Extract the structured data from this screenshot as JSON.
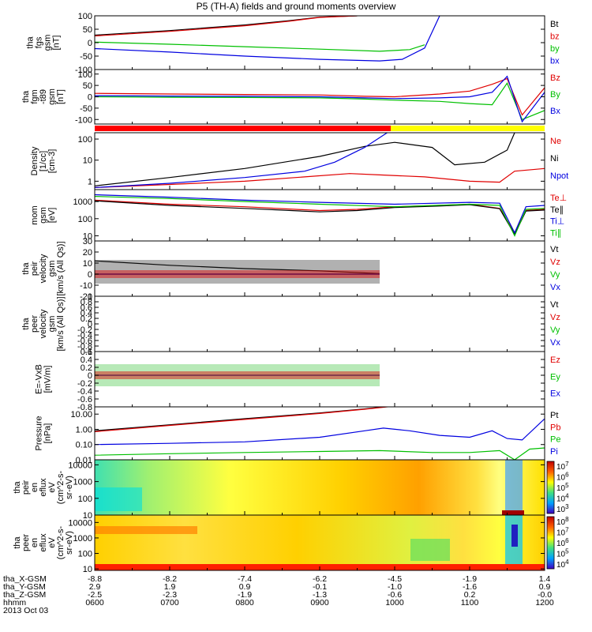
{
  "title": "P5 (TH-A) fields and ground moments overview",
  "chart_data": [
    {
      "type": "line",
      "ylabel_lines": [
        "tha",
        "fgs",
        "gsm",
        "[nT]"
      ],
      "ylim": [
        -100,
        100
      ],
      "yticks": [
        100,
        50,
        0,
        -50,
        -100
      ],
      "series": [
        {
          "name": "Bt",
          "color": "#000000",
          "x": [
            6.0,
            7.0,
            8.0,
            8.6,
            9.0,
            9.5
          ],
          "y": [
            28,
            45,
            66,
            82,
            95,
            100
          ]
        },
        {
          "name": "bz",
          "color": "#e00000",
          "x": [
            6.0,
            7.0,
            8.0,
            8.6,
            9.0,
            9.5
          ],
          "y": [
            25,
            42,
            63,
            80,
            94,
            100
          ]
        },
        {
          "name": "by",
          "color": "#00c000",
          "x": [
            6.0,
            7.0,
            8.0,
            9.0,
            9.8,
            10.2,
            10.4
          ],
          "y": [
            2,
            -6,
            -15,
            -24,
            -32,
            -26,
            -8
          ]
        },
        {
          "name": "bx",
          "color": "#0000e0",
          "x": [
            6.0,
            7.0,
            8.0,
            9.0,
            9.8,
            10.1,
            10.4,
            10.6
          ],
          "y": [
            -22,
            -35,
            -50,
            -62,
            -68,
            -62,
            -20,
            100
          ]
        }
      ]
    },
    {
      "type": "line",
      "ylabel_lines": [
        "tha",
        "fgm",
        "-t89",
        "gsm",
        "[nT]"
      ],
      "ylim": [
        -120,
        120
      ],
      "yticks": [
        100,
        50,
        0,
        -50,
        -100
      ],
      "series": [
        {
          "name": "Bz",
          "color": "#e00000",
          "x": [
            6.0,
            7.0,
            8.0,
            9.0,
            9.6,
            10.0,
            10.6,
            11.0,
            11.3,
            11.5,
            11.7,
            12.0
          ],
          "y": [
            15,
            12,
            10,
            8,
            2,
            0,
            12,
            25,
            55,
            80,
            -80,
            40
          ]
        },
        {
          "name": "By",
          "color": "#00c000",
          "x": [
            6.0,
            7.0,
            8.0,
            9.0,
            9.6,
            10.0,
            10.6,
            11.0,
            11.3,
            11.5,
            11.7,
            12.0
          ],
          "y": [
            0,
            -2,
            -3,
            -5,
            -10,
            -15,
            -20,
            -30,
            -35,
            60,
            -100,
            -60
          ]
        },
        {
          "name": "Bx",
          "color": "#0000e0",
          "x": [
            6.0,
            7.0,
            8.0,
            9.0,
            9.6,
            10.0,
            10.6,
            11.0,
            11.3,
            11.5,
            11.7,
            12.0
          ],
          "y": [
            5,
            3,
            2,
            0,
            -5,
            -8,
            -5,
            0,
            20,
            90,
            -110,
            20
          ]
        }
      ]
    },
    {
      "type": "line",
      "ylabel_lines": [
        "Density",
        "[1/cc]",
        "[cm-3]"
      ],
      "yscale": "log",
      "ylim": [
        0.4,
        200
      ],
      "yticks": [
        100,
        10,
        1
      ],
      "yticklabels": [
        "100",
        "10",
        "1"
      ],
      "series": [
        {
          "name": "Ne",
          "color": "#e00000",
          "x": [
            6.0,
            7.0,
            8.0,
            8.8,
            9.4,
            9.8,
            10.4,
            11.0,
            11.4,
            11.6,
            12.0
          ],
          "y": [
            0.5,
            0.7,
            1.0,
            1.6,
            2.3,
            2.0,
            1.6,
            1.0,
            0.9,
            3.0,
            4.0
          ]
        },
        {
          "name": "Ni",
          "color": "#000000",
          "x": [
            6.0,
            7.0,
            8.0,
            9.0,
            9.6,
            10.0,
            10.5,
            10.8,
            11.2,
            11.5,
            11.6
          ],
          "y": [
            0.6,
            1.5,
            4.0,
            15,
            45,
            70,
            40,
            6,
            8,
            30,
            200
          ]
        },
        {
          "name": "Npot",
          "color": "#0000e0",
          "x": [
            6.0,
            7.0,
            8.0,
            8.8,
            9.2,
            9.6,
            9.9
          ],
          "y": [
            0.5,
            0.8,
            1.5,
            3,
            8,
            40,
            200
          ]
        }
      ]
    },
    {
      "type": "line",
      "ylabel_lines": [
        "mom",
        "gsm",
        "[eV]"
      ],
      "yscale": "log",
      "ylim": [
        5,
        5000
      ],
      "yticks": [
        1000,
        100,
        10
      ],
      "yticklabels": [
        "1000",
        "100",
        "10"
      ],
      "series": [
        {
          "name": "Te⊥",
          "color": "#e00000",
          "x": [
            6.0,
            7.0,
            8.0,
            9.0,
            9.5,
            10.0,
            10.6,
            11.0,
            11.4,
            11.6,
            11.75,
            12.0
          ],
          "y": [
            1200,
            700,
            500,
            300,
            350,
            500,
            600,
            700,
            400,
            15,
            300,
            350
          ]
        },
        {
          "name": "Te∥",
          "color": "#000000",
          "x": [
            6.0,
            7.0,
            8.0,
            9.0,
            9.5,
            10.0,
            10.6,
            11.0,
            11.4,
            11.6,
            11.75,
            12.0
          ],
          "y": [
            1100,
            600,
            400,
            250,
            300,
            450,
            550,
            650,
            380,
            12,
            280,
            320
          ]
        },
        {
          "name": "Ti⊥",
          "color": "#0000e0",
          "x": [
            6.0,
            7.0,
            8.0,
            9.0,
            10.0,
            11.0,
            11.4,
            11.6,
            11.75,
            12.0
          ],
          "y": [
            2500,
            1800,
            1200,
            900,
            700,
            900,
            800,
            15,
            500,
            600
          ]
        },
        {
          "name": "Ti∥",
          "color": "#00c000",
          "x": [
            6.0,
            7.0,
            8.0,
            9.0,
            10.0,
            11.0,
            11.4,
            11.6,
            11.75,
            12.0
          ],
          "y": [
            2000,
            1500,
            1000,
            700,
            500,
            700,
            600,
            10,
            350,
            400
          ]
        }
      ]
    },
    {
      "type": "line",
      "ylabel_lines": [
        "tha",
        "peir",
        "velocity",
        "gsm",
        "[km/s (All Qs)]"
      ],
      "ylim": [
        -20,
        30
      ],
      "yticks": [
        30,
        20,
        10,
        0,
        -10,
        -20
      ],
      "series": [
        {
          "name": "Vt",
          "color": "#000000",
          "x": [
            6.0,
            7.0,
            8.0,
            9.0,
            9.8
          ],
          "y": [
            12,
            8,
            5,
            3,
            0.5
          ]
        },
        {
          "name": "Vz",
          "color": "#e00000",
          "x": [
            6.0,
            7.0,
            8.0,
            9.0,
            9.8
          ],
          "y": [
            0,
            0,
            0,
            0,
            0
          ]
        },
        {
          "name": "Vy",
          "color": "#00c000",
          "x": [
            6.0,
            7.0,
            8.0,
            9.0,
            9.8
          ],
          "y": [
            0,
            0,
            0,
            0,
            0
          ]
        },
        {
          "name": "Vx",
          "color": "#0000e0",
          "x": [
            6.0,
            7.0,
            8.0,
            9.0,
            9.8
          ],
          "y": [
            0,
            0,
            0,
            0,
            0
          ]
        }
      ]
    },
    {
      "type": "line",
      "ylabel_lines": [
        "tha",
        "peer",
        "velocity",
        "gsm",
        "[km/s (All Qs)]"
      ],
      "ylim": [
        -1.0,
        1.0
      ],
      "yticks": [
        1.0,
        0.8,
        0.6,
        0.4,
        0.2,
        0.0,
        -0.2,
        -0.4,
        -0.6,
        -0.8,
        -1.0
      ],
      "series": [
        {
          "name": "Vt",
          "color": "#000000",
          "x": [],
          "y": []
        },
        {
          "name": "Vz",
          "color": "#e00000",
          "x": [],
          "y": []
        },
        {
          "name": "Vy",
          "color": "#00c000",
          "x": [],
          "y": []
        },
        {
          "name": "Vx",
          "color": "#0000e0",
          "x": [],
          "y": []
        }
      ]
    },
    {
      "type": "line",
      "ylabel_lines": [
        "E=-VxB",
        "[mV/m]"
      ],
      "ylim": [
        -0.8,
        0.6
      ],
      "yticks": [
        0.6,
        0.4,
        0.2,
        0.0,
        -0.2,
        -0.4,
        -0.6,
        -0.8
      ],
      "series": [
        {
          "name": "Ez",
          "color": "#e00000",
          "x": [
            6.0,
            9.8
          ],
          "y": [
            0,
            0
          ]
        },
        {
          "name": "Ey",
          "color": "#00c000",
          "x": [
            6.0,
            9.8
          ],
          "y": [
            0,
            0
          ]
        },
        {
          "name": "Ex",
          "color": "#0000e0",
          "x": [
            6.0,
            9.8
          ],
          "y": [
            0,
            0
          ]
        }
      ]
    },
    {
      "type": "line",
      "ylabel_lines": [
        "Pressure",
        "[nPa]"
      ],
      "yscale": "log",
      "ylim": [
        0.01,
        30
      ],
      "yticks": [
        10,
        1,
        0.1,
        0.01
      ],
      "yticklabels": [
        "10.00",
        "1.00",
        "0.10",
        "0.01"
      ],
      "series": [
        {
          "name": "Pt",
          "color": "#000000",
          "x": [
            6.0,
            7.0,
            8.0,
            9.0,
            9.6,
            10.0
          ],
          "y": [
            0.8,
            2.0,
            5.0,
            12,
            22,
            35
          ]
        },
        {
          "name": "Pb",
          "color": "#e00000",
          "x": [
            6.0,
            7.0,
            8.0,
            9.0,
            9.6,
            10.0
          ],
          "y": [
            0.7,
            1.8,
            4.5,
            11,
            21,
            34
          ]
        },
        {
          "name": "Pe",
          "color": "#00c000",
          "x": [
            6.0,
            7.0,
            8.0,
            9.0,
            9.8,
            10.5,
            11.0,
            11.4,
            11.6,
            11.8,
            12.0
          ],
          "y": [
            0.02,
            0.025,
            0.03,
            0.035,
            0.04,
            0.03,
            0.03,
            0.04,
            0.01,
            0.05,
            0.06
          ]
        },
        {
          "name": "Pi",
          "color": "#0000e0",
          "x": [
            6.0,
            7.0,
            8.0,
            9.0,
            9.6,
            9.85,
            10.2,
            10.6,
            11.0,
            11.3,
            11.5,
            11.7,
            12.0
          ],
          "y": [
            0.1,
            0.12,
            0.15,
            0.3,
            0.8,
            1.2,
            0.8,
            0.4,
            0.3,
            0.8,
            0.25,
            0.2,
            5
          ]
        }
      ]
    },
    {
      "type": "heatmap",
      "ylabel_lines": [
        "tha",
        "peir",
        "en",
        "eflux",
        "eV",
        "(cm^2-s-",
        "sr-eV)"
      ],
      "yscale": "log",
      "ylim": [
        10,
        20000
      ],
      "yticks": [
        10000,
        1000,
        100,
        10
      ],
      "yticklabels": [
        "10000",
        "1000",
        "100",
        "10"
      ],
      "colorbar_ticks": [
        "10^7",
        "10^6",
        "10^5",
        "10^4",
        "10^3"
      ]
    },
    {
      "type": "heatmap",
      "ylabel_lines": [
        "tha",
        "peer",
        "en",
        "eflux",
        "eV",
        "(cm^2-s-",
        "sr-eV)"
      ],
      "yscale": "log",
      "ylim": [
        8,
        30000
      ],
      "yticks": [
        10000,
        1000,
        100,
        10
      ],
      "yticklabels": [
        "10000",
        "1000",
        "100",
        "10"
      ],
      "colorbar_ticks": [
        "10^8",
        "10^7",
        "10^6",
        "10^5",
        "10^4"
      ]
    }
  ],
  "xaxis": {
    "xlim": [
      6.0,
      12.0
    ],
    "ticks": [
      6,
      7,
      8,
      9,
      10,
      11,
      12
    ],
    "rows": [
      {
        "label": "tha_X-GSM",
        "values": [
          "-8.8",
          "-8.2",
          "-7.4",
          "-6.2",
          "-4.5",
          "-1.9",
          "1.4"
        ]
      },
      {
        "label": "tha_Y-GSM",
        "values": [
          "2.9",
          "1.9",
          "0.9",
          "-0.1",
          "-1.0",
          "-1.6",
          "0.9"
        ]
      },
      {
        "label": "tha_Z-GSM",
        "values": [
          "-2.5",
          "-2.3",
          "-1.9",
          "-1.3",
          "-0.6",
          "0.2",
          "-0.0"
        ]
      },
      {
        "label": "hhmm",
        "values": [
          "0600",
          "0700",
          "0800",
          "0900",
          "1000",
          "1100",
          "1200"
        ]
      }
    ],
    "date": "2013 Oct 03"
  }
}
